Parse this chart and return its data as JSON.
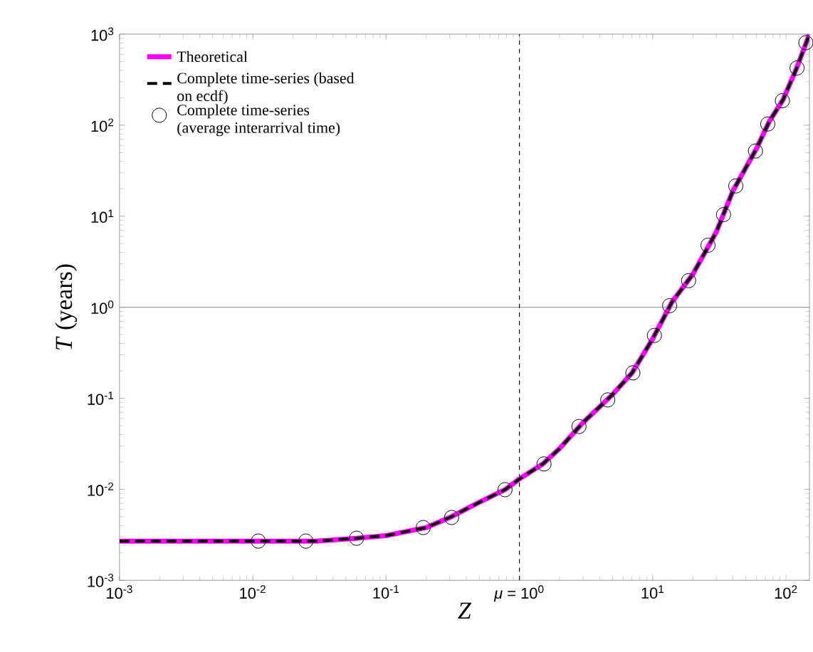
{
  "chart_data": {
    "type": "line",
    "xlabel": "*Z*",
    "ylabel": "*T* (years)",
    "log": "xy",
    "legend": "top left",
    "xlim": [
      0.001,
      150
    ],
    "ylim": [
      0.001,
      1000
    ],
    "xticks": [
      {
        "value": 0.001,
        "label": "10$^{-3}$"
      },
      {
        "value": 0.01,
        "label": "10$^{-2}$"
      },
      {
        "value": 0.1,
        "label": "10$^{-1}$"
      },
      {
        "value": 1,
        "label": "*μ* = 10$^{0}$"
      },
      {
        "value": 10,
        "label": "10$^{1}$"
      },
      {
        "value": 100,
        "label": "10$^{2}$"
      }
    ],
    "yticks": [
      {
        "value": 0.001,
        "label": "10$^{-3}$"
      },
      {
        "value": 0.01,
        "label": "10$^{-2}$"
      },
      {
        "value": 0.1,
        "label": "10$^{-1}$"
      },
      {
        "value": 1,
        "label": "10$^{0}$"
      },
      {
        "value": 10,
        "label": "10$^{1}$"
      },
      {
        "value": 100,
        "label": "10$^{2}$"
      },
      {
        "value": 1000,
        "label": "10$^{3}$"
      }
    ],
    "ref_lines": [
      {
        "axis": "y",
        "value": 1,
        "color": "#a0a0a0",
        "line_style": "solid"
      },
      {
        "axis": "x",
        "value": 1,
        "color": "#000000",
        "line_style": "dashed"
      }
    ],
    "series": [
      {
        "name": "Theoretical",
        "color": "#ff00ff",
        "line_style": "solid",
        "marker": "none",
        "x": [
          0.001,
          0.003,
          0.01,
          0.03,
          0.06,
          0.1,
          0.2,
          0.3,
          0.5,
          0.78,
          1,
          1.5,
          2,
          3,
          5,
          7,
          10,
          14,
          20,
          30,
          40,
          60,
          75,
          95,
          120,
          150
        ],
        "values": [
          0.0027,
          0.0027,
          0.0027,
          0.0027,
          0.0029,
          0.0031,
          0.0038,
          0.0049,
          0.0072,
          0.0099,
          0.013,
          0.019,
          0.028,
          0.054,
          0.11,
          0.19,
          0.45,
          1.15,
          2.3,
          6.7,
          19,
          55,
          110,
          190,
          420,
          1000
        ]
      },
      {
        "name": "Complete time-series (based on ecdf)",
        "color": "#000000",
        "line_style": "dashed",
        "marker": "none",
        "x": [
          0.001,
          0.003,
          0.01,
          0.03,
          0.06,
          0.1,
          0.2,
          0.3,
          0.5,
          0.78,
          1,
          1.5,
          2,
          3,
          5,
          7,
          10,
          14,
          20,
          30,
          40,
          60,
          75,
          95,
          120,
          150
        ],
        "values": [
          0.0027,
          0.0027,
          0.0027,
          0.0027,
          0.0029,
          0.0031,
          0.0038,
          0.0049,
          0.0072,
          0.0099,
          0.013,
          0.019,
          0.028,
          0.054,
          0.11,
          0.19,
          0.45,
          1.15,
          2.3,
          6.7,
          19,
          55,
          110,
          190,
          420,
          1000
        ]
      },
      {
        "name": "Complete time-series (average interarrival time)",
        "type": "scatter",
        "color": "#000000",
        "marker": "circle",
        "x": [
          0.011,
          0.025,
          0.06,
          0.19,
          0.31,
          0.78,
          1.53,
          2.8,
          4.6,
          7.1,
          10.3,
          13.4,
          18.6,
          26,
          34,
          42,
          59,
          73,
          94,
          121,
          141
        ],
        "values": [
          0.0027,
          0.0027,
          0.0029,
          0.0038,
          0.0049,
          0.0099,
          0.019,
          0.049,
          0.096,
          0.19,
          0.49,
          1.04,
          1.96,
          4.8,
          10.4,
          21.5,
          52,
          103,
          186,
          425,
          805
        ]
      }
    ]
  }
}
